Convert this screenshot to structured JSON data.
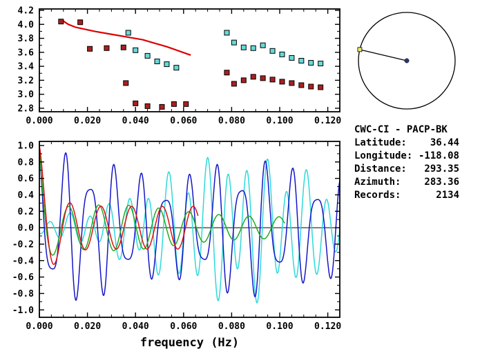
{
  "station_info": {
    "title": "CWC-CI - PACP-BK",
    "rows": [
      {
        "label": "Latitude:",
        "value": "36.44"
      },
      {
        "label": "Longitude:",
        "value": "-118.08"
      },
      {
        "label": "Distance:",
        "value": "293.35"
      },
      {
        "label": "Azimuth:",
        "value": "283.36"
      },
      {
        "label": "Records:",
        "value": "2134"
      }
    ]
  },
  "compass": {
    "azimuth_deg": 283.36,
    "center_marker_color": "#283878",
    "edge_marker_color": "#e8e870"
  },
  "chart_data": [
    {
      "id": "dispersion",
      "type": "scatter",
      "xlim": [
        0,
        0.125
      ],
      "ylim": [
        2.75,
        4.22
      ],
      "xticks": [
        0,
        0.02,
        0.04,
        0.06,
        0.08,
        0.1,
        0.12
      ],
      "x_tick_labels": [
        "0.000",
        "0.020",
        "0.040",
        "0.060",
        "0.080",
        "0.100",
        "0.120"
      ],
      "yticks": [
        2.8,
        3.0,
        3.2,
        3.4,
        3.6,
        3.8,
        4.0,
        4.2
      ],
      "y_tick_labels": [
        "2.8",
        "3.0",
        "3.2",
        "3.4",
        "3.6",
        "3.8",
        "4.0",
        "4.2"
      ],
      "x_minor_step": 0.005,
      "y_minor_step": 0.1,
      "line_series": [
        {
          "name": "reference-dispersion-curve",
          "color": "#dd0000",
          "width": 2.2,
          "points": [
            [
              0.009,
              4.07
            ],
            [
              0.012,
              4.0
            ],
            [
              0.015,
              3.96
            ],
            [
              0.019,
              3.93
            ],
            [
              0.023,
              3.9
            ],
            [
              0.028,
              3.87
            ],
            [
              0.033,
              3.84
            ],
            [
              0.038,
              3.81
            ],
            [
              0.043,
              3.78
            ],
            [
              0.048,
              3.73
            ],
            [
              0.053,
              3.68
            ],
            [
              0.058,
              3.62
            ],
            [
              0.063,
              3.56
            ]
          ]
        }
      ],
      "scatter_series": [
        {
          "name": "group-velocity-points",
          "color": "#aa2020",
          "marker": "square",
          "points": [
            [
              0.009,
              4.04
            ],
            [
              0.017,
              4.03
            ],
            [
              0.021,
              3.65
            ],
            [
              0.028,
              3.66
            ],
            [
              0.035,
              3.67
            ],
            [
              0.036,
              3.16
            ],
            [
              0.04,
              2.87
            ],
            [
              0.045,
              2.83
            ],
            [
              0.051,
              2.82
            ],
            [
              0.056,
              2.86
            ],
            [
              0.061,
              2.86
            ],
            [
              0.078,
              3.31
            ],
            [
              0.081,
              3.15
            ],
            [
              0.085,
              3.2
            ],
            [
              0.089,
              3.25
            ],
            [
              0.093,
              3.23
            ],
            [
              0.097,
              3.21
            ],
            [
              0.101,
              3.18
            ],
            [
              0.105,
              3.16
            ],
            [
              0.109,
              3.13
            ],
            [
              0.113,
              3.11
            ],
            [
              0.117,
              3.1
            ]
          ]
        },
        {
          "name": "phase-velocity-points",
          "color": "#66d9d9",
          "marker": "square",
          "points": [
            [
              0.037,
              3.88
            ],
            [
              0.04,
              3.63
            ],
            [
              0.045,
              3.55
            ],
            [
              0.049,
              3.47
            ],
            [
              0.053,
              3.43
            ],
            [
              0.057,
              3.38
            ],
            [
              0.078,
              3.88
            ],
            [
              0.081,
              3.74
            ],
            [
              0.085,
              3.67
            ],
            [
              0.089,
              3.66
            ],
            [
              0.093,
              3.7
            ],
            [
              0.097,
              3.62
            ],
            [
              0.101,
              3.57
            ],
            [
              0.105,
              3.52
            ],
            [
              0.109,
              3.48
            ],
            [
              0.113,
              3.45
            ],
            [
              0.117,
              3.44
            ]
          ]
        }
      ]
    },
    {
      "id": "waveforms",
      "type": "line",
      "xlabel": "frequency (Hz)",
      "xlim": [
        0,
        0.125
      ],
      "ylim": [
        -1.09,
        1.05
      ],
      "xticks": [
        0,
        0.02,
        0.04,
        0.06,
        0.08,
        0.1,
        0.12
      ],
      "x_tick_labels": [
        "0.000",
        "0.020",
        "0.040",
        "0.060",
        "0.080",
        "0.100",
        "0.120"
      ],
      "yticks": [
        -1.0,
        -0.8,
        -0.6,
        -0.4,
        -0.2,
        0.0,
        0.2,
        0.4,
        0.6,
        0.8,
        1.0
      ],
      "y_tick_labels": [
        "-1.0",
        "-0.8",
        "-0.6",
        "-0.4",
        "-0.2",
        "0.0",
        "0.2",
        "0.4",
        "0.6",
        "0.8",
        "1.0"
      ],
      "x_minor_step": 0.005,
      "y_minor_step": 0.1,
      "zero_line": true,
      "synth_series": [
        {
          "name": "ccf-cyan",
          "color": "#2ed9d9",
          "xmax": 0.125,
          "components": [
            {
              "amp": 0.8,
              "period": 0.0082,
              "phase": 2.8
            },
            {
              "amp": 0.25,
              "period": 0.014,
              "phase": 0.6
            }
          ],
          "envelope": {
            "base": 0.06,
            "gauss_amp": 0.85,
            "gauss_mu": 0.083,
            "gauss_sigma": 0.035
          }
        },
        {
          "name": "ccf-blue",
          "color": "#1414c8",
          "xmax": 0.125,
          "components": [
            {
              "amp": 0.75,
              "period": 0.0105,
              "phase": 0.0
            },
            {
              "amp": 0.25,
              "period": 0.0063,
              "phase": 1.1
            }
          ],
          "envelope": {
            "base": 0.78,
            "exp_amp": 0.28,
            "exp_tau": 0.01,
            "mod_amp": 0.12,
            "mod_period": 0.07
          }
        },
        {
          "name": "ccf-green",
          "color": "#22aa22",
          "xmax": 0.102,
          "components": [
            {
              "amp": 1.0,
              "period": 0.0125,
              "phase": 0.15
            }
          ],
          "envelope": {
            "base": 0.13,
            "gauss_amp": 0.15,
            "gauss_mu": 0.03,
            "gauss_sigma": 0.025,
            "exp_amp": 0.75,
            "exp_tau": 0.003
          }
        },
        {
          "name": "ccf-red",
          "color": "#dd1111",
          "xmax": 0.066,
          "components": [
            {
              "amp": 1.0,
              "period": 0.0128,
              "phase": 0.0
            }
          ],
          "envelope": {
            "base": 0.26,
            "exp_amp": 0.74,
            "exp_tau": 0.0045
          }
        }
      ]
    }
  ]
}
